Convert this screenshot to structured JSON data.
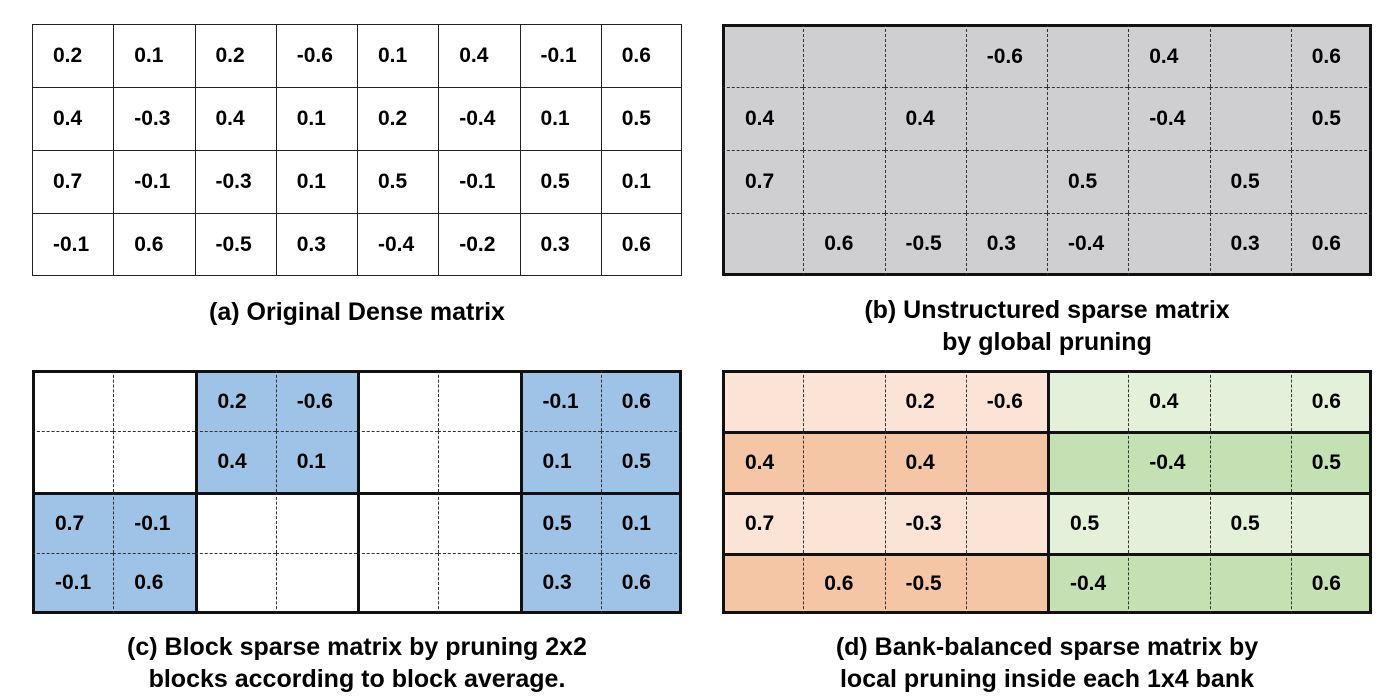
{
  "panels": [
    {
      "id": "a",
      "caption": [
        "(a) Original Dense matrix"
      ],
      "cells": [
        [
          "0.2",
          "0.1",
          "0.2",
          "-0.6",
          "0.1",
          "0.4",
          "-0.1",
          "0.6"
        ],
        [
          "0.4",
          "-0.3",
          "0.4",
          "0.1",
          "0.2",
          "-0.4",
          "0.1",
          "0.5"
        ],
        [
          "0.7",
          "-0.1",
          "-0.3",
          "0.1",
          "0.5",
          "-0.1",
          "0.5",
          "0.1"
        ],
        [
          "-0.1",
          "0.6",
          "-0.5",
          "0.3",
          "-0.4",
          "-0.2",
          "0.3",
          "0.6"
        ]
      ]
    },
    {
      "id": "b",
      "caption": [
        "(b) Unstructured sparse matrix",
        "by global pruning"
      ],
      "cells": [
        [
          "",
          "",
          "",
          "-0.6",
          "",
          "0.4",
          "",
          "0.6"
        ],
        [
          "0.4",
          "",
          "0.4",
          "",
          "",
          "-0.4",
          "",
          "0.5"
        ],
        [
          "0.7",
          "",
          "",
          "",
          "0.5",
          "",
          "0.5",
          ""
        ],
        [
          "",
          "0.6",
          "-0.5",
          "0.3",
          "-0.4",
          "",
          "0.3",
          "0.6"
        ]
      ]
    },
    {
      "id": "c",
      "caption": [
        "(c) Block sparse matrix by pruning 2x2",
        "blocks according to block average."
      ],
      "cells": [
        [
          "",
          "",
          "0.2",
          "-0.6",
          "",
          "",
          "-0.1",
          "0.6"
        ],
        [
          "",
          "",
          "0.4",
          "0.1",
          "",
          "",
          "0.1",
          "0.5"
        ],
        [
          "0.7",
          "-0.1",
          "",
          "",
          "",
          "",
          "0.5",
          "0.1"
        ],
        [
          "-0.1",
          "0.6",
          "",
          "",
          "",
          "",
          "0.3",
          "0.6"
        ]
      ]
    },
    {
      "id": "d",
      "caption": [
        "(d) Bank-balanced sparse matrix by",
        "local pruning inside each 1x4 bank"
      ],
      "cells": [
        [
          "",
          "",
          "0.2",
          "-0.6",
          "",
          "0.4",
          "",
          "0.6"
        ],
        [
          "0.4",
          "",
          "0.4",
          "",
          "",
          "-0.4",
          "",
          "0.5"
        ],
        [
          "0.7",
          "",
          "-0.3",
          "",
          "0.5",
          "",
          "0.5",
          ""
        ],
        [
          "",
          "0.6",
          "-0.5",
          "",
          "-0.4",
          "",
          "",
          "0.6"
        ]
      ]
    }
  ],
  "colors": {
    "gray_fill": "#cfcfd1",
    "blue_fill": "#9ec3e6",
    "orange_light": "#fbe3d5",
    "orange_dark": "#f4c6a6",
    "green_light": "#e3f0da",
    "green_dark": "#c5e0b3"
  }
}
